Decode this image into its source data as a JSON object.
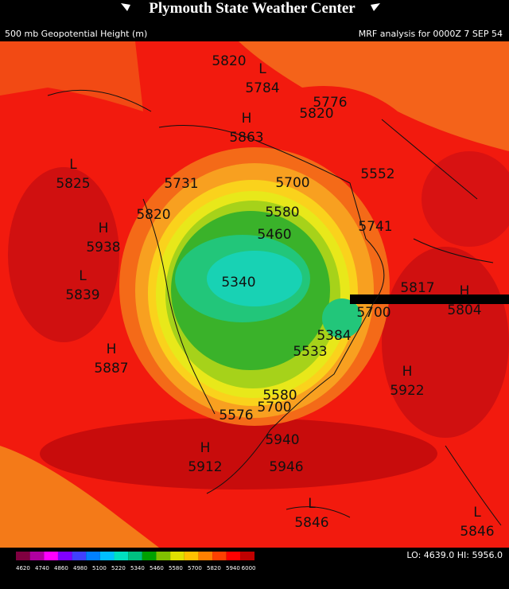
{
  "header": {
    "title": "Plymouth State Weather Center",
    "left": "500 mb Geopotential Height (m)",
    "right": "MRF analysis for 0000Z  7 SEP 54"
  },
  "map": {
    "labels": [
      {
        "value": "5820"
      },
      {
        "symbol": "L",
        "value": "5784"
      },
      {
        "value": "5776"
      },
      {
        "value": "5820"
      },
      {
        "symbol": "H",
        "value": "5863"
      },
      {
        "symbol": "L",
        "value": "5825"
      },
      {
        "value": "5731"
      },
      {
        "value": "5700"
      },
      {
        "value": "5552"
      },
      {
        "symbol": "H",
        "value": "5938"
      },
      {
        "value": "5820"
      },
      {
        "value": "5580"
      },
      {
        "value": "5741"
      },
      {
        "value": "5460"
      },
      {
        "symbol": "L",
        "value": "5839"
      },
      {
        "value": "5340"
      },
      {
        "value": "5384"
      },
      {
        "value": "5533"
      },
      {
        "value": "5700"
      },
      {
        "value": "5817"
      },
      {
        "symbol": "H",
        "value": "5804"
      },
      {
        "symbol": "H",
        "value": "5887"
      },
      {
        "symbol": "H",
        "value": "5922"
      },
      {
        "value": "5580"
      },
      {
        "value": "5700"
      },
      {
        "value": "5576"
      },
      {
        "symbol": "H",
        "value": "5912"
      },
      {
        "value": "5940"
      },
      {
        "value": "5946"
      },
      {
        "symbol": "L",
        "value": "5846"
      },
      {
        "symbol": "L",
        "value": "5846"
      }
    ]
  },
  "legend": {
    "ticks": [
      "4620",
      "4740",
      "4860",
      "4980",
      "5100",
      "5220",
      "5340",
      "5460",
      "5580",
      "5700",
      "5820",
      "5940",
      "6000"
    ],
    "stats": "LO: 4639.0  HI: 5956.0"
  }
}
